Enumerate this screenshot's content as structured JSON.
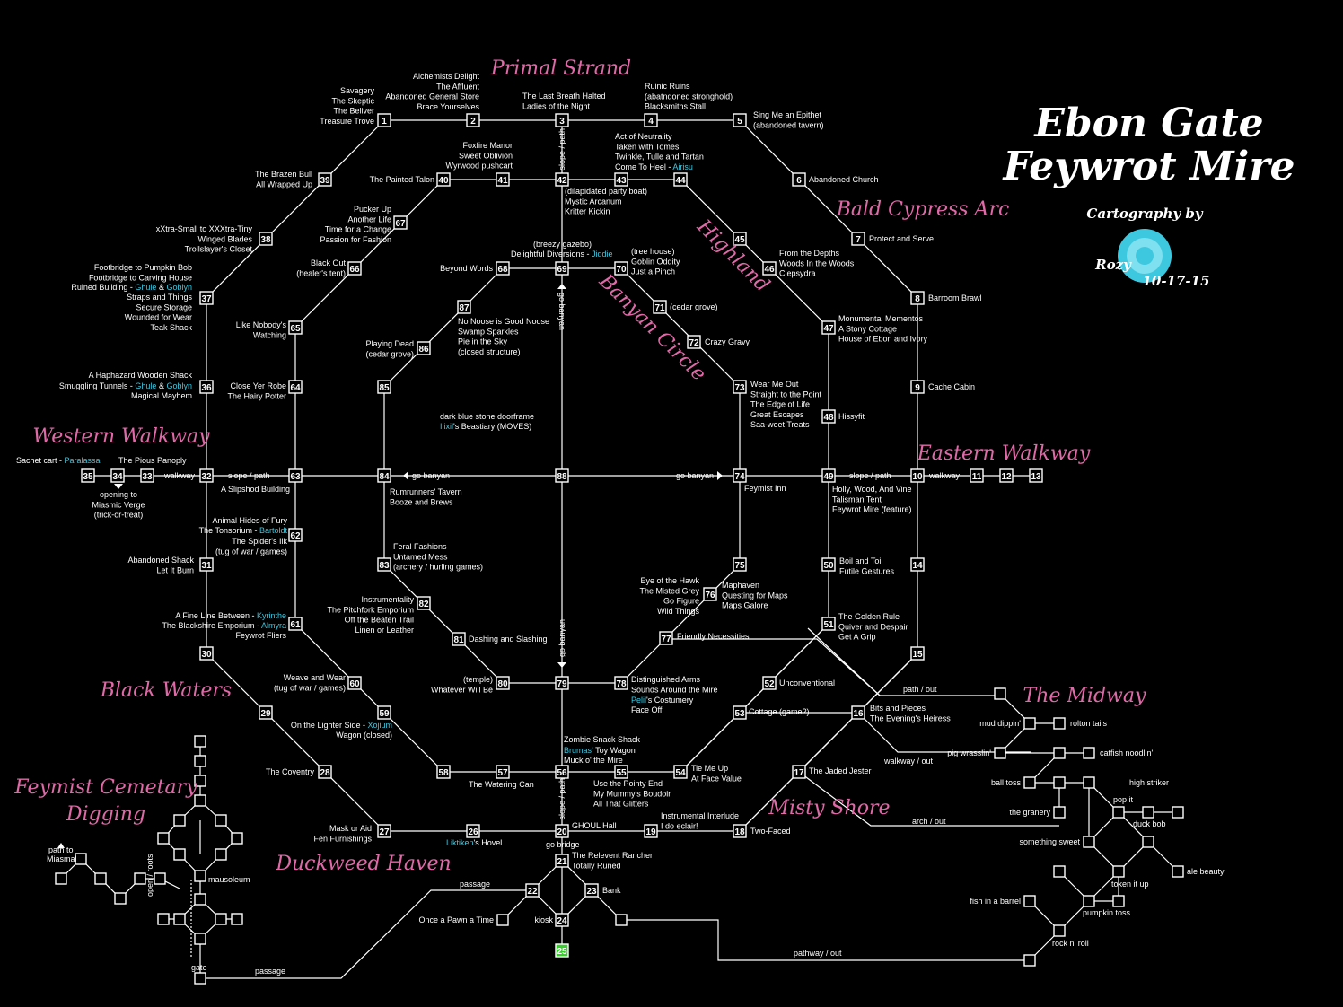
{
  "title": {
    "line1": "Ebon Gate",
    "line2": "Feywrot Mire"
  },
  "credit": {
    "top": "Cartography by",
    "name": "Rozy",
    "date": "10-17-15"
  },
  "regions": {
    "primal_strand": "Primal Strand",
    "bald_cypress_arc": "Bald Cypress Arc",
    "highland": "Highland",
    "banyan_circle": "Banyan Circle",
    "western_walkway": "Western Walkway",
    "eastern_walkway": "Eastern Walkway",
    "black_waters": "Black Waters",
    "the_midway": "The Midway",
    "misty_shore": "Misty Shore",
    "feymist_cemetary_1": "Feymist Cemetary",
    "feymist_cemetary_2": "Digging",
    "duckweed_haven": "Duckweed Haven"
  },
  "nodes": {
    "n1": "1",
    "n2": "2",
    "n3": "3",
    "n4": "4",
    "n5": "5",
    "n6": "6",
    "n7": "7",
    "n8": "8",
    "n9": "9",
    "n10": "10",
    "n11": "11",
    "n12": "12",
    "n13": "13",
    "n14": "14",
    "n15": "15",
    "n16": "16",
    "n17": "17",
    "n18": "18",
    "n19": "19",
    "n20": "20",
    "n21": "21",
    "n22": "22",
    "n23": "23",
    "n24": "24",
    "n25": "25",
    "n26": "26",
    "n27": "27",
    "n28": "28",
    "n29": "29",
    "n30": "30",
    "n31": "31",
    "n32": "32",
    "n33": "33",
    "n34": "34",
    "n35": "35",
    "n36": "36",
    "n37": "37",
    "n38": "38",
    "n39": "39",
    "n40": "40",
    "n41": "41",
    "n42": "42",
    "n43": "43",
    "n44": "44",
    "n45": "45",
    "n46": "46",
    "n47": "47",
    "n48": "48",
    "n49": "49",
    "n50": "50",
    "n51": "51",
    "n52": "52",
    "n53": "53",
    "n54": "54",
    "n55": "55",
    "n56": "56",
    "n57": "57",
    "n58": "58",
    "n59": "59",
    "n60": "60",
    "n61": "61",
    "n62": "62",
    "n63": "63",
    "n64": "64",
    "n65": "65",
    "n66": "66",
    "n67": "67",
    "n68": "68",
    "n69": "69",
    "n70": "70",
    "n71": "71",
    "n72": "72",
    "n73": "73",
    "n74": "74",
    "n75": "75",
    "n76": "76",
    "n77": "77",
    "n78": "78",
    "n79": "79",
    "n80": "80",
    "n81": "81",
    "n82": "82",
    "n83": "83",
    "n84": "84",
    "n85": "85",
    "n86": "86",
    "n87": "87",
    "n88": "88"
  },
  "labels": {
    "l1": [
      "Savagery",
      "The Skeptic",
      "The Beliver",
      "Treasure Trove"
    ],
    "l2": [
      "Alchemists Delight",
      "The Affluent",
      "Abandoned General Store",
      "Brace Yourselves"
    ],
    "l3": [
      "The Last Breath Halted",
      "Ladies of the Night"
    ],
    "l4": [
      "Ruinic Ruins",
      "(abatndoned stronghold)",
      "Blacksmiths Stall"
    ],
    "l5": [
      "Sing Me an Epithet",
      "(abandoned tavern)"
    ],
    "l6": [
      "Abandoned Church"
    ],
    "l7": [
      "Protect and Serve"
    ],
    "l8": [
      "Barroom Brawl"
    ],
    "l9": [
      "Cache Cabin"
    ],
    "l39": [
      "The Brazen Bull",
      "All Wrapped Up"
    ],
    "l40": [
      "The Painted Talon"
    ],
    "l41": [
      "Foxfire Manor",
      "Sweet Oblivion",
      "Wyrwood pushcart"
    ],
    "l43": [
      "Act of Neutrality",
      "Taken with Tomes",
      "Twinkle, Tulle and Tartan"
    ],
    "l43b": "Come To Heel - ",
    "l43b_hl": "Airisu",
    "l42": [
      "(dilapidated party boat)",
      "Mystic Arcanum",
      "Kritter Kickin"
    ],
    "l38": [
      "xXtra-Small to XXXtra-Tiny",
      "Winged Blades",
      "Trollslayer's Closet"
    ],
    "l67": [
      "Pucker Up",
      "Another Life",
      "Time for a Change",
      "Passion for Fashion"
    ],
    "l69a": "(breezy gazebo)",
    "l69b": "Delightful Diversions - ",
    "l69b_hl": "Jiddie",
    "l70": [
      "(tree house)",
      "Goblin Oddity",
      "Just a Pinch"
    ],
    "l46": [
      "From the Depths",
      "Woods In the Woods",
      "Clepsydra"
    ],
    "l68": [
      "Beyond Words"
    ],
    "l66": [
      "Black Out",
      "(healer's tent)"
    ],
    "l37": [
      "Footbridge to Pumpkin Bob",
      "Footbridge to Carving House"
    ],
    "l37c": "Ruined Building - ",
    "l37c_hl1": "Ghule",
    "l37c_amp": " & ",
    "l37c_hl2": "Goblyn",
    "l37d": [
      "Straps and Things",
      "Secure Storage",
      "Wounded for Wear",
      "Teak Shack"
    ],
    "l71": [
      "(cedar grove)"
    ],
    "l87": [
      "No Noose is Good Noose",
      "Swamp Sparkles",
      "Pie in the Sky",
      "(closed structure)"
    ],
    "l65": [
      "Like Nobody's",
      "Watching"
    ],
    "l72": [
      "Crazy Gravy"
    ],
    "l47": [
      "Monumental Mementos",
      "A Stony Cottage",
      "House of Ebon and Ivory"
    ],
    "l86": [
      "Playing Dead",
      "(cedar grove)"
    ],
    "l36a": [
      "A Haphazard Wooden Shack"
    ],
    "l36b": "Smuggling Tunnels - ",
    "l36b_hl1": "Ghule",
    "l36b_amp": " & ",
    "l36b_hl2": "Goblyn",
    "l36c": [
      "Magical Mayhem"
    ],
    "l64": [
      "Close Yer Robe",
      "The Hairy Potter"
    ],
    "l73": [
      "Wear Me Out",
      "Straight to the Point",
      "The Edge of Life",
      "Great Escapes",
      "Saa-weet Treats"
    ],
    "l48": [
      "Hissyfit"
    ],
    "l88a": "dark blue stone doorframe",
    "l88b_hl": "Ilixil",
    "l88b": "'s Beastiary (MOVES)",
    "l35a": "Sachet cart - ",
    "l35a_hl": "Paralassa",
    "l33": "The Pious Panoply",
    "walkway_w": "walkway",
    "slope_w": "slope / path",
    "go_banyan_w": "go banyan",
    "go_banyan_e": "go banyan",
    "slope_e": "slope / path",
    "walkway_e": "walkway",
    "slope_n": "slope / path",
    "go_banyan_n": "go banyan",
    "go_banyan_s": "go banyan",
    "slope_s": "slope / path",
    "l34": [
      "opening to",
      "Miasmic Verge",
      "(trick-or-treat)"
    ],
    "l63": [
      "A Slipshod Building"
    ],
    "l84": [
      "Rumrunners' Tavern",
      "Booze and Brews"
    ],
    "l74": [
      "Feymist Inn"
    ],
    "l49": [
      "Holly, Wood, And Vine",
      "Talisman Tent",
      "Feywrot Mire (feature)"
    ],
    "l62a": [
      "Animal Hides of Fury"
    ],
    "l62b": "The Tonsorium - ",
    "l62b_hl": "Bartoldt",
    "l62c": [
      "The Spider's Ilk",
      "(tug of war / games)"
    ],
    "l83": [
      "Feral Fashions",
      "Untamed Mess",
      "(archery / hurling games)"
    ],
    "l31": [
      "Abandoned Shack",
      "Let It Burn"
    ],
    "l50": [
      "Boil and Toil",
      "Futile Gestures"
    ],
    "l76a": [
      "Eye of the Hawk",
      "The Misted Grey",
      "Go Figure",
      "Wild Things"
    ],
    "l76b": [
      "Maphaven",
      "Questing for Maps",
      "Maps Galore"
    ],
    "l82": [
      "Instrumentality",
      "The Pitchfork Emporium",
      "Off the Beaten Trail",
      "Linen or Leather"
    ],
    "l61a": "A Fine Line Between - ",
    "l61a_hl": "Kyrinthe",
    "l61b": "The Blackshire Emporium - ",
    "l61b_hl": "Almyra",
    "l61c": "Feywrot Fliers",
    "l51": [
      "The Golden Rule",
      "Quiver and Despair",
      "Get A Grip"
    ],
    "l81": [
      "Dashing and Slashing"
    ],
    "l77": [
      "Friendly Necessities"
    ],
    "l60": [
      "Weave and Wear",
      "(tug of war / games)"
    ],
    "l80": [
      "(temple)",
      "Whatever Will Be"
    ],
    "l78a": [
      "Distinguished Arms",
      "Sounds Around the Mire"
    ],
    "l78b_hl": "Pelil",
    "l78b": "'s Costumery",
    "l78c": "Face Off",
    "l52": [
      "Unconventional"
    ],
    "path_out": "path / out",
    "l59a": "On the Lighter Side - ",
    "l59a_hl": "Xojium",
    "l59b": "Wagon (closed)",
    "l53": [
      "Cottage (game?)"
    ],
    "l16": [
      "Bits and Pieces",
      "The Evening's Heiress"
    ],
    "l56a": "Zombie Snack Shack",
    "l56b_hl": "Brumas'",
    "l56b": " Toy Wagon",
    "l56c": "Muck o' the Mire",
    "walkway_out": "walkway / out",
    "l28": [
      "The Coventry"
    ],
    "l54": [
      "Tie Me Up",
      "At Face Value"
    ],
    "l17": [
      "The Jaded Jester"
    ],
    "l57": [
      "The Watering Can"
    ],
    "l55": [
      "Use the Pointy End",
      "My Mummy's Boudoir",
      "All That Glitters"
    ],
    "l20": [
      "GHOUL Hall"
    ],
    "l19": [
      "Instrumental Interlude",
      "I do eclair!"
    ],
    "arch_out": "arch / out",
    "l27": [
      "Mask or Aid",
      "Fen Furnishings"
    ],
    "l26_hl": "Liktiken",
    "l26": "'s Hovel",
    "l18": [
      "Two-Faced"
    ],
    "go_bridge": "go bridge",
    "l21": [
      "The Relevent Rancher",
      "Totally Runed"
    ],
    "l23": [
      "Bank"
    ],
    "passage_1": "passage",
    "l22": [
      "Once a Pawn a Time"
    ],
    "l24": [
      "kiosk"
    ],
    "passage_2": "passage",
    "pathway_out": "pathway / out",
    "cem_path": [
      "path to",
      "Miasmal"
    ],
    "cem_open": "open / roots",
    "cem_mausoleum": "mausoleum",
    "cem_gate": "gate",
    "midway": {
      "mud_dippin": "mud dippin'",
      "rolton_tails": "rolton tails",
      "pig_wrasslin": "pig wrasslin'",
      "catfish": "catfish noodlin'",
      "ball_toss": "ball toss",
      "high_striker": "high striker",
      "pop_it": "pop it",
      "the_granery": "the granery",
      "duck_bob": "duck bob",
      "something_sweet": "something sweet",
      "ale_beauty": "ale beauty",
      "token_it_up": "token it up",
      "fish_barrel": "fish in a barrel",
      "pumpkin_toss": "pumpkin toss",
      "rock_n_roll": "rock n' roll"
    }
  }
}
